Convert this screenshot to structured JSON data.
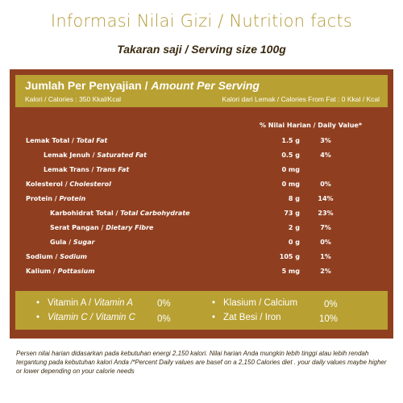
{
  "title": "Informasi Nilai Gizi / Nutrition facts",
  "serving": "Takaran saji / Serving size 100g",
  "header": {
    "amount_id": "Jumlah Per Penyajian / ",
    "amount_en": "Amount Per Serving",
    "calories": "Kalori / Calories : 350 Kkal/Kcal",
    "calories_fat": "Kalori dari Lemak / Calories From Fat : 0 Kkal / Kcal"
  },
  "dv_header": "% Nilai Harian / Daily Value*",
  "rows": [
    {
      "id": "Lemak Total / ",
      "en": "Total Fat",
      "amount": "1.5 g",
      "pct": "3%"
    },
    {
      "id": "Lemak Jenuh / ",
      "en": "Saturated Fat",
      "amount": "0.5 g",
      "pct": "4%"
    },
    {
      "id": "Lemak Trans / ",
      "en": "Trans Fat",
      "amount": "0 mg",
      "pct": ""
    },
    {
      "id": "Kolesterol / ",
      "en": "Cholesterol",
      "amount": "0 mg",
      "pct": "0%"
    },
    {
      "id": "Protein / ",
      "en": "Protein",
      "amount": "8 g",
      "pct": "14%"
    },
    {
      "id": "Karbohidrat Total / ",
      "en": "Total Carbohydrate",
      "amount": "73 g",
      "pct": "23%"
    },
    {
      "id": "Serat Pangan / ",
      "en": "Dietary Fibre",
      "amount": "2 g",
      "pct": "7%"
    },
    {
      "id": "Gula / ",
      "en": "Sugar",
      "amount": "0 g",
      "pct": "0%"
    },
    {
      "id": "Sodium / ",
      "en": "Sodium",
      "amount": "105 g",
      "pct": "1%"
    },
    {
      "id": "Kalium / ",
      "en": "Pottasium",
      "amount": "5 mg",
      "pct": "2%"
    }
  ],
  "vitamins": {
    "a_id": "Vitamin A / ",
    "a_en": "Vitamin A",
    "a_val": "0%",
    "c_id": "Vitamin C / ",
    "c_en": "Vitamin C",
    "c_val": "0%",
    "calcium": "Klasium / Calcium",
    "calcium_val": "0%",
    "iron": "Zat Besi / Iron",
    "iron_val": "10%",
    "bullet": "•"
  },
  "footnote": "Persen nilai harian didasarkan pada kebutuhan energi 2,150 kalori. Nilai harian Anda mungkin lebih tinggi atau lebih rendah tergantung pada kebutuhan kalori Anda /*Percent Daily values are basef on a 2,150 Calories diet . your daily values maybe higher or lower depending on your calorie needs",
  "colors": {
    "title": "#b59b3a",
    "panel": "#8f3f20",
    "band": "#b8a032",
    "text_dark": "#3a2a10"
  }
}
